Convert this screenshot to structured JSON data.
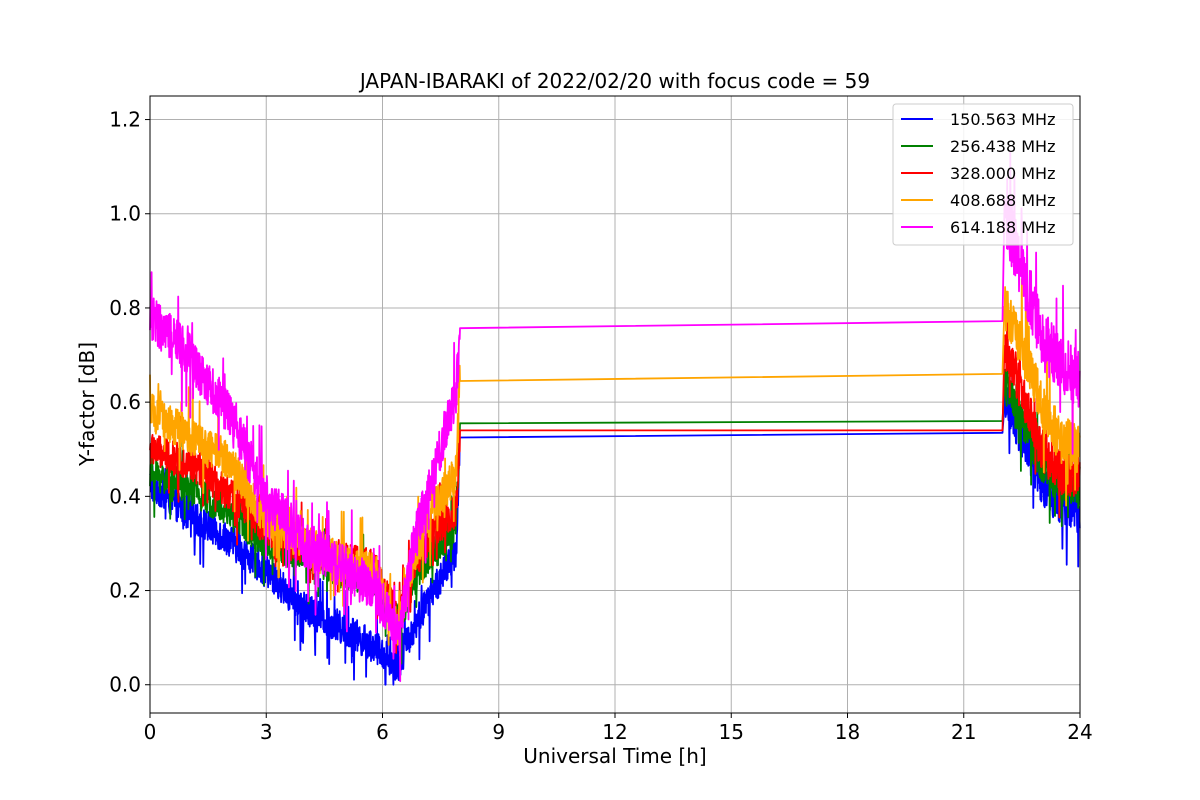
{
  "chart_data": {
    "type": "line",
    "title": "JAPAN-IBARAKI of 2022/02/20 with focus code = 59",
    "xlabel": "Universal Time [h]",
    "ylabel": "Y-factor [dB]",
    "xlim": [
      0,
      24
    ],
    "ylim": [
      -0.06,
      1.25
    ],
    "x_ticks": [
      0,
      3,
      6,
      9,
      12,
      15,
      18,
      21,
      24
    ],
    "x_tick_labels": [
      "0",
      "3",
      "6",
      "9",
      "12",
      "15",
      "18",
      "21",
      "24"
    ],
    "y_ticks": [
      0.0,
      0.2,
      0.4,
      0.6,
      0.8,
      1.0,
      1.2
    ],
    "y_tick_labels": [
      "0.0",
      "0.2",
      "0.4",
      "0.6",
      "0.8",
      "1.0",
      "1.2"
    ],
    "grid": true,
    "legend_position": "top-right",
    "series": [
      {
        "name": "150.563 MHz",
        "color": "#0000ff",
        "noise": 0.035,
        "points": [
          [
            0,
            0.43
          ],
          [
            1,
            0.36
          ],
          [
            2,
            0.31
          ],
          [
            3,
            0.24
          ],
          [
            4,
            0.16
          ],
          [
            5,
            0.12
          ],
          [
            5.8,
            0.08
          ],
          [
            6.4,
            0.04
          ],
          [
            6.8,
            0.12
          ],
          [
            7.3,
            0.2
          ],
          [
            7.9,
            0.28
          ],
          [
            8.0,
            0.525
          ],
          [
            22.0,
            0.535
          ],
          [
            22.05,
            0.6
          ],
          [
            22.5,
            0.53
          ],
          [
            23,
            0.43
          ],
          [
            23.5,
            0.38
          ],
          [
            24,
            0.37
          ]
        ]
      },
      {
        "name": "256.438 MHz",
        "color": "#008000",
        "noise": 0.035,
        "points": [
          [
            0,
            0.45
          ],
          [
            1,
            0.42
          ],
          [
            2,
            0.37
          ],
          [
            3,
            0.3
          ],
          [
            4,
            0.27
          ],
          [
            5,
            0.24
          ],
          [
            5.8,
            0.22
          ],
          [
            6.4,
            0.12
          ],
          [
            6.8,
            0.22
          ],
          [
            7.3,
            0.28
          ],
          [
            7.9,
            0.33
          ],
          [
            8.0,
            0.555
          ],
          [
            22.0,
            0.56
          ],
          [
            22.05,
            0.64
          ],
          [
            22.5,
            0.57
          ],
          [
            23,
            0.47
          ],
          [
            23.5,
            0.43
          ],
          [
            24,
            0.42
          ]
        ]
      },
      {
        "name": "328.000 MHz",
        "color": "#ff0000",
        "noise": 0.035,
        "points": [
          [
            0,
            0.5
          ],
          [
            1,
            0.47
          ],
          [
            2,
            0.41
          ],
          [
            3,
            0.33
          ],
          [
            4,
            0.29
          ],
          [
            5,
            0.27
          ],
          [
            5.8,
            0.25
          ],
          [
            6.4,
            0.14
          ],
          [
            6.8,
            0.25
          ],
          [
            7.3,
            0.32
          ],
          [
            7.9,
            0.37
          ],
          [
            8.0,
            0.54
          ],
          [
            22.0,
            0.54
          ],
          [
            22.05,
            0.72
          ],
          [
            22.5,
            0.62
          ],
          [
            23,
            0.5
          ],
          [
            23.5,
            0.45
          ],
          [
            24,
            0.44
          ]
        ]
      },
      {
        "name": "408.688 MHz",
        "color": "#ffa500",
        "noise": 0.04,
        "points": [
          [
            0,
            0.58
          ],
          [
            1,
            0.53
          ],
          [
            2,
            0.48
          ],
          [
            3,
            0.35
          ],
          [
            4,
            0.3
          ],
          [
            5,
            0.26
          ],
          [
            5.8,
            0.24
          ],
          [
            6.4,
            0.12
          ],
          [
            6.8,
            0.27
          ],
          [
            7.3,
            0.37
          ],
          [
            7.9,
            0.45
          ],
          [
            8.0,
            0.645
          ],
          [
            22.0,
            0.66
          ],
          [
            22.05,
            0.8
          ],
          [
            22.5,
            0.72
          ],
          [
            23,
            0.6
          ],
          [
            23.5,
            0.52
          ],
          [
            24,
            0.5
          ]
        ]
      },
      {
        "name": "614.188 MHz",
        "color": "#ff00ff",
        "noise": 0.05,
        "points": [
          [
            0,
            0.78
          ],
          [
            1,
            0.7
          ],
          [
            2,
            0.58
          ],
          [
            3,
            0.4
          ],
          [
            4,
            0.3
          ],
          [
            5,
            0.25
          ],
          [
            5.8,
            0.2
          ],
          [
            6.4,
            0.1
          ],
          [
            6.8,
            0.3
          ],
          [
            7.3,
            0.45
          ],
          [
            7.9,
            0.62
          ],
          [
            8.0,
            0.757
          ],
          [
            22.0,
            0.772
          ],
          [
            22.05,
            1.0
          ],
          [
            22.5,
            0.88
          ],
          [
            23,
            0.74
          ],
          [
            23.5,
            0.68
          ],
          [
            24,
            0.65
          ]
        ]
      }
    ]
  }
}
